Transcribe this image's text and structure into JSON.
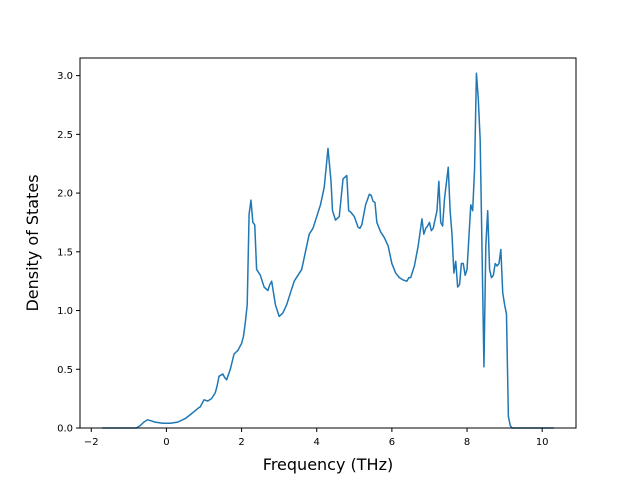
{
  "chart_data": {
    "type": "line",
    "title": "",
    "xlabel": "Frequency (THz)",
    "ylabel": "Density of States",
    "xlim": [
      -2.3,
      10.9
    ],
    "ylim": [
      0,
      3.15
    ],
    "xticks": [
      -2,
      0,
      2,
      4,
      6,
      8,
      10
    ],
    "yticks": [
      0.0,
      0.5,
      1.0,
      1.5,
      2.0,
      2.5,
      3.0
    ],
    "xtick_labels": [
      "−2",
      "0",
      "2",
      "4",
      "6",
      "8",
      "10"
    ],
    "ytick_labels": [
      "0.0",
      "0.5",
      "1.0",
      "1.5",
      "2.0",
      "2.5",
      "3.0"
    ],
    "grid": false,
    "legend": "none",
    "series": [
      {
        "color": "#1f77b4",
        "x": [
          -1.7,
          -0.8,
          -0.7,
          -0.6,
          -0.5,
          -0.4,
          -0.3,
          -0.1,
          0.1,
          0.3,
          0.5,
          0.7,
          0.85,
          0.9,
          1.0,
          1.1,
          1.2,
          1.3,
          1.35,
          1.4,
          1.5,
          1.55,
          1.6,
          1.7,
          1.8,
          1.9,
          2.0,
          2.05,
          2.08,
          2.1,
          2.15,
          2.2,
          2.25,
          2.3,
          2.35,
          2.4,
          2.5,
          2.6,
          2.7,
          2.75,
          2.8,
          2.9,
          3.0,
          3.1,
          3.2,
          3.3,
          3.4,
          3.5,
          3.6,
          3.7,
          3.8,
          3.9,
          4.0,
          4.1,
          4.2,
          4.3,
          4.38,
          4.42,
          4.5,
          4.6,
          4.7,
          4.8,
          4.85,
          4.9,
          5.0,
          5.1,
          5.15,
          5.2,
          5.3,
          5.4,
          5.45,
          5.5,
          5.55,
          5.6,
          5.7,
          5.8,
          5.9,
          6.0,
          6.1,
          6.2,
          6.3,
          6.4,
          6.45,
          6.5,
          6.6,
          6.7,
          6.8,
          6.85,
          6.9,
          6.95,
          7.0,
          7.05,
          7.1,
          7.2,
          7.25,
          7.3,
          7.35,
          7.4,
          7.5,
          7.55,
          7.6,
          7.65,
          7.7,
          7.75,
          7.8,
          7.85,
          7.9,
          7.95,
          8.0,
          8.1,
          8.15,
          8.2,
          8.25,
          8.3,
          8.35,
          8.4,
          8.45,
          8.5,
          8.55,
          8.6,
          8.65,
          8.7,
          8.75,
          8.8,
          8.85,
          8.9,
          8.95,
          9.0,
          9.05,
          9.1,
          9.15,
          9.2,
          9.25,
          9.3,
          9.35,
          9.4,
          10.3
        ],
        "y": [
          0.0,
          0.0,
          0.02,
          0.05,
          0.07,
          0.06,
          0.05,
          0.04,
          0.04,
          0.05,
          0.08,
          0.13,
          0.17,
          0.18,
          0.24,
          0.23,
          0.25,
          0.3,
          0.36,
          0.44,
          0.46,
          0.43,
          0.41,
          0.5,
          0.63,
          0.66,
          0.72,
          0.78,
          0.85,
          0.9,
          1.05,
          1.82,
          1.94,
          1.75,
          1.73,
          1.35,
          1.3,
          1.2,
          1.17,
          1.22,
          1.25,
          1.05,
          0.95,
          0.98,
          1.05,
          1.15,
          1.25,
          1.3,
          1.35,
          1.5,
          1.65,
          1.7,
          1.8,
          1.9,
          2.05,
          2.38,
          2.1,
          1.85,
          1.77,
          1.8,
          2.12,
          2.15,
          1.85,
          1.84,
          1.8,
          1.71,
          1.7,
          1.73,
          1.9,
          1.99,
          1.98,
          1.93,
          1.92,
          1.75,
          1.67,
          1.62,
          1.55,
          1.4,
          1.32,
          1.28,
          1.26,
          1.25,
          1.28,
          1.28,
          1.38,
          1.55,
          1.78,
          1.65,
          1.7,
          1.72,
          1.75,
          1.68,
          1.7,
          1.85,
          2.1,
          1.75,
          1.72,
          1.95,
          2.22,
          1.85,
          1.65,
          1.32,
          1.42,
          1.2,
          1.22,
          1.4,
          1.4,
          1.3,
          1.35,
          1.9,
          1.85,
          2.2,
          3.02,
          2.8,
          2.45,
          1.5,
          0.52,
          1.55,
          1.85,
          1.35,
          1.28,
          1.3,
          1.4,
          1.38,
          1.4,
          1.52,
          1.15,
          1.05,
          0.97,
          0.1,
          0.02,
          0.0,
          0.0,
          0.0,
          0.0,
          0.0,
          0.0
        ]
      }
    ]
  }
}
